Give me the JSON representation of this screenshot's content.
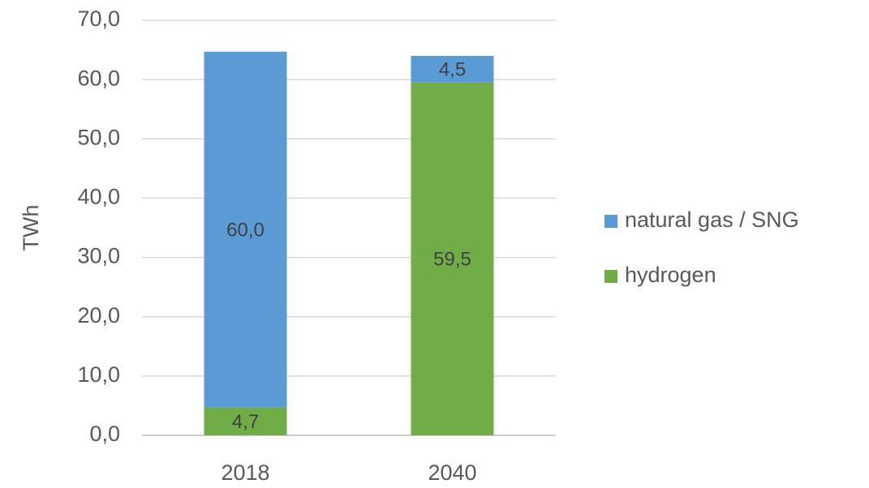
{
  "chart_data": {
    "type": "bar",
    "stacked": true,
    "y_label": "TWh",
    "categories": [
      "2018",
      "2040"
    ],
    "series": [
      {
        "name": "hydrogen",
        "color": "#70ad47",
        "values": [
          4.7,
          59.5
        ],
        "value_labels": [
          "4,7",
          "59,5"
        ]
      },
      {
        "name": "natural gas / SNG",
        "color": "#5b9bd5",
        "values": [
          60.0,
          4.5
        ],
        "value_labels": [
          "60,0",
          "4,5"
        ]
      }
    ],
    "ylim": [
      0,
      70
    ],
    "yticks": [
      {
        "value": 0,
        "label": "0,0"
      },
      {
        "value": 10,
        "label": "10,0"
      },
      {
        "value": 20,
        "label": "20,0"
      },
      {
        "value": 30,
        "label": "30,0"
      },
      {
        "value": 40,
        "label": "40,0"
      },
      {
        "value": 50,
        "label": "50,0"
      },
      {
        "value": 60,
        "label": "60,0"
      },
      {
        "value": 70,
        "label": "70,0"
      }
    ],
    "grid": true,
    "legend": "right"
  }
}
